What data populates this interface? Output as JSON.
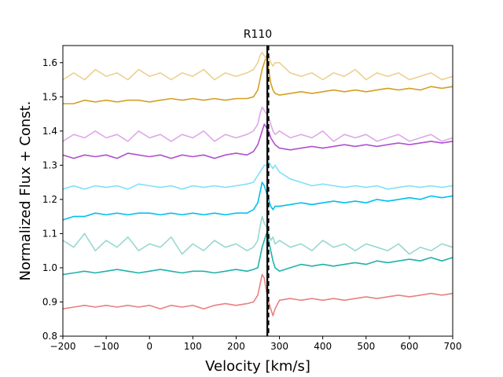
{
  "chart_data": {
    "type": "line",
    "title": "R110",
    "xlabel": "Velocity [km/s]",
    "ylabel": "Normalized Flux + Const.",
    "xlim": [
      -200,
      700
    ],
    "ylim": [
      0.8,
      1.65
    ],
    "xticks": [
      "−200",
      "−100",
      "0",
      "100",
      "200",
      "300",
      "400",
      "500",
      "600",
      "700"
    ],
    "xtick_values": [
      -200,
      -100,
      0,
      100,
      200,
      300,
      400,
      500,
      600,
      700
    ],
    "yticks": [
      "0.8",
      "0.9",
      "1.0",
      "1.1",
      "1.2",
      "1.3",
      "1.4",
      "1.5",
      "1.6"
    ],
    "ytick_values": [
      0.8,
      0.9,
      1.0,
      1.1,
      1.2,
      1.3,
      1.4,
      1.5,
      1.6
    ],
    "vlines": [
      {
        "name": "systemic-velocity",
        "x": 272,
        "style": "solid",
        "color": "#000000"
      },
      {
        "name": "reference-velocity",
        "x": 275,
        "style": "dashed",
        "color": "#000000"
      }
    ],
    "series": [
      {
        "name": "spectrum-1",
        "color": "#e88080",
        "x": [
          -200,
          -175,
          -150,
          -125,
          -100,
          -75,
          -50,
          -25,
          0,
          25,
          50,
          75,
          100,
          125,
          150,
          175,
          200,
          225,
          240,
          250,
          255,
          260,
          265,
          270,
          275,
          280,
          285,
          290,
          300,
          325,
          350,
          375,
          400,
          425,
          450,
          475,
          500,
          525,
          550,
          575,
          600,
          625,
          650,
          675,
          700
        ],
        "values": [
          0.88,
          0.885,
          0.89,
          0.885,
          0.89,
          0.885,
          0.89,
          0.885,
          0.89,
          0.88,
          0.89,
          0.885,
          0.89,
          0.88,
          0.89,
          0.895,
          0.89,
          0.895,
          0.9,
          0.92,
          0.95,
          0.98,
          0.97,
          0.93,
          0.9,
          0.88,
          0.86,
          0.88,
          0.905,
          0.91,
          0.905,
          0.91,
          0.905,
          0.91,
          0.905,
          0.91,
          0.915,
          0.91,
          0.915,
          0.92,
          0.915,
          0.92,
          0.925,
          0.92,
          0.925
        ]
      },
      {
        "name": "spectrum-2",
        "color": "#20b2aa",
        "x": [
          -200,
          -175,
          -150,
          -125,
          -100,
          -75,
          -50,
          -25,
          0,
          25,
          50,
          75,
          100,
          125,
          150,
          175,
          200,
          225,
          240,
          250,
          255,
          260,
          265,
          270,
          275,
          280,
          285,
          290,
          300,
          325,
          350,
          375,
          400,
          425,
          450,
          475,
          500,
          525,
          550,
          575,
          600,
          625,
          650,
          675,
          700
        ],
        "values": [
          0.98,
          0.985,
          0.99,
          0.985,
          0.99,
          0.995,
          0.99,
          0.985,
          0.99,
          0.995,
          0.99,
          0.985,
          0.99,
          0.99,
          0.985,
          0.99,
          0.995,
          0.99,
          0.995,
          1.0,
          1.03,
          1.06,
          1.08,
          1.1,
          1.08,
          1.05,
          1.02,
          1.0,
          0.99,
          1.0,
          1.01,
          1.005,
          1.01,
          1.005,
          1.01,
          1.015,
          1.01,
          1.02,
          1.015,
          1.02,
          1.025,
          1.02,
          1.03,
          1.02,
          1.03
        ]
      },
      {
        "name": "spectrum-3",
        "color": "#98d8d0",
        "x": [
          -200,
          -175,
          -150,
          -125,
          -100,
          -75,
          -50,
          -25,
          0,
          25,
          50,
          75,
          100,
          125,
          150,
          175,
          200,
          225,
          240,
          250,
          255,
          260,
          265,
          270,
          275,
          280,
          285,
          290,
          300,
          325,
          350,
          375,
          400,
          425,
          450,
          475,
          500,
          525,
          550,
          575,
          600,
          625,
          650,
          675,
          700
        ],
        "values": [
          1.08,
          1.06,
          1.1,
          1.05,
          1.08,
          1.06,
          1.09,
          1.05,
          1.07,
          1.06,
          1.09,
          1.04,
          1.07,
          1.05,
          1.08,
          1.06,
          1.07,
          1.05,
          1.06,
          1.08,
          1.12,
          1.15,
          1.13,
          1.12,
          1.1,
          1.08,
          1.09,
          1.07,
          1.08,
          1.06,
          1.07,
          1.05,
          1.08,
          1.06,
          1.07,
          1.05,
          1.07,
          1.06,
          1.05,
          1.07,
          1.04,
          1.06,
          1.05,
          1.07,
          1.06
        ]
      },
      {
        "name": "spectrum-4",
        "color": "#00bfee",
        "x": [
          -200,
          -175,
          -150,
          -125,
          -100,
          -75,
          -50,
          -25,
          0,
          25,
          50,
          75,
          100,
          125,
          150,
          175,
          200,
          225,
          240,
          250,
          255,
          260,
          265,
          270,
          275,
          280,
          285,
          290,
          300,
          325,
          350,
          375,
          400,
          425,
          450,
          475,
          500,
          525,
          550,
          575,
          600,
          625,
          650,
          675,
          700
        ],
        "values": [
          1.14,
          1.15,
          1.15,
          1.16,
          1.155,
          1.16,
          1.155,
          1.16,
          1.16,
          1.155,
          1.16,
          1.155,
          1.16,
          1.155,
          1.16,
          1.155,
          1.16,
          1.16,
          1.17,
          1.19,
          1.22,
          1.25,
          1.24,
          1.22,
          1.2,
          1.18,
          1.17,
          1.18,
          1.18,
          1.185,
          1.19,
          1.185,
          1.19,
          1.195,
          1.19,
          1.195,
          1.19,
          1.2,
          1.195,
          1.2,
          1.205,
          1.2,
          1.21,
          1.205,
          1.21
        ]
      },
      {
        "name": "spectrum-5",
        "color": "#80e0f8",
        "x": [
          -200,
          -175,
          -150,
          -125,
          -100,
          -75,
          -50,
          -25,
          0,
          25,
          50,
          75,
          100,
          125,
          150,
          175,
          200,
          225,
          240,
          250,
          255,
          260,
          265,
          270,
          275,
          280,
          285,
          290,
          300,
          325,
          350,
          375,
          400,
          425,
          450,
          475,
          500,
          525,
          550,
          575,
          600,
          625,
          650,
          675,
          700
        ],
        "values": [
          1.23,
          1.24,
          1.23,
          1.24,
          1.235,
          1.24,
          1.23,
          1.245,
          1.24,
          1.235,
          1.24,
          1.23,
          1.24,
          1.235,
          1.24,
          1.235,
          1.24,
          1.245,
          1.25,
          1.27,
          1.28,
          1.29,
          1.3,
          1.3,
          1.31,
          1.3,
          1.29,
          1.3,
          1.28,
          1.26,
          1.25,
          1.24,
          1.245,
          1.24,
          1.235,
          1.24,
          1.235,
          1.24,
          1.23,
          1.235,
          1.24,
          1.235,
          1.24,
          1.235,
          1.24
        ]
      },
      {
        "name": "spectrum-6",
        "color": "#b050d0",
        "x": [
          -200,
          -175,
          -150,
          -125,
          -100,
          -75,
          -50,
          -25,
          0,
          25,
          50,
          75,
          100,
          125,
          150,
          175,
          200,
          225,
          240,
          250,
          255,
          260,
          265,
          270,
          275,
          280,
          285,
          290,
          300,
          325,
          350,
          375,
          400,
          425,
          450,
          475,
          500,
          525,
          550,
          575,
          600,
          625,
          650,
          675,
          700
        ],
        "values": [
          1.33,
          1.32,
          1.33,
          1.325,
          1.33,
          1.32,
          1.335,
          1.33,
          1.325,
          1.33,
          1.32,
          1.33,
          1.325,
          1.33,
          1.32,
          1.33,
          1.335,
          1.33,
          1.34,
          1.36,
          1.38,
          1.4,
          1.42,
          1.41,
          1.4,
          1.38,
          1.37,
          1.36,
          1.35,
          1.345,
          1.35,
          1.355,
          1.35,
          1.355,
          1.36,
          1.355,
          1.36,
          1.355,
          1.36,
          1.365,
          1.36,
          1.365,
          1.37,
          1.365,
          1.37
        ]
      },
      {
        "name": "spectrum-7",
        "color": "#dda8e8",
        "x": [
          -200,
          -175,
          -150,
          -125,
          -100,
          -75,
          -50,
          -25,
          0,
          25,
          50,
          75,
          100,
          125,
          150,
          175,
          200,
          225,
          240,
          250,
          255,
          260,
          265,
          270,
          275,
          280,
          285,
          290,
          300,
          325,
          350,
          375,
          400,
          425,
          450,
          475,
          500,
          525,
          550,
          575,
          600,
          625,
          650,
          675,
          700
        ],
        "values": [
          1.37,
          1.39,
          1.38,
          1.4,
          1.38,
          1.39,
          1.37,
          1.4,
          1.38,
          1.39,
          1.37,
          1.39,
          1.38,
          1.4,
          1.37,
          1.39,
          1.38,
          1.39,
          1.4,
          1.42,
          1.45,
          1.47,
          1.46,
          1.45,
          1.44,
          1.42,
          1.4,
          1.39,
          1.4,
          1.38,
          1.39,
          1.38,
          1.4,
          1.37,
          1.39,
          1.38,
          1.39,
          1.37,
          1.38,
          1.39,
          1.37,
          1.38,
          1.39,
          1.37,
          1.38
        ]
      },
      {
        "name": "spectrum-8",
        "color": "#d4a024",
        "x": [
          -200,
          -175,
          -150,
          -125,
          -100,
          -75,
          -50,
          -25,
          0,
          25,
          50,
          75,
          100,
          125,
          150,
          175,
          200,
          225,
          240,
          250,
          255,
          260,
          265,
          270,
          275,
          280,
          285,
          290,
          300,
          325,
          350,
          375,
          400,
          425,
          450,
          475,
          500,
          525,
          550,
          575,
          600,
          625,
          650,
          675,
          700
        ],
        "values": [
          1.48,
          1.48,
          1.49,
          1.485,
          1.49,
          1.485,
          1.49,
          1.49,
          1.485,
          1.49,
          1.495,
          1.49,
          1.495,
          1.49,
          1.495,
          1.49,
          1.495,
          1.495,
          1.5,
          1.52,
          1.55,
          1.58,
          1.6,
          1.62,
          1.58,
          1.54,
          1.52,
          1.51,
          1.505,
          1.51,
          1.515,
          1.51,
          1.515,
          1.52,
          1.515,
          1.52,
          1.515,
          1.52,
          1.525,
          1.52,
          1.525,
          1.52,
          1.53,
          1.525,
          1.53
        ]
      },
      {
        "name": "spectrum-9",
        "color": "#ecd090",
        "x": [
          -200,
          -175,
          -150,
          -125,
          -100,
          -75,
          -50,
          -25,
          0,
          25,
          50,
          75,
          100,
          125,
          150,
          175,
          200,
          225,
          240,
          250,
          255,
          260,
          265,
          270,
          275,
          280,
          285,
          290,
          300,
          325,
          350,
          375,
          400,
          425,
          450,
          475,
          500,
          525,
          550,
          575,
          600,
          625,
          650,
          675,
          700
        ],
        "values": [
          1.55,
          1.57,
          1.55,
          1.58,
          1.56,
          1.57,
          1.55,
          1.58,
          1.56,
          1.57,
          1.55,
          1.57,
          1.56,
          1.58,
          1.55,
          1.57,
          1.56,
          1.57,
          1.58,
          1.6,
          1.62,
          1.63,
          1.62,
          1.61,
          1.62,
          1.6,
          1.59,
          1.6,
          1.6,
          1.57,
          1.56,
          1.57,
          1.55,
          1.57,
          1.56,
          1.58,
          1.55,
          1.57,
          1.56,
          1.57,
          1.55,
          1.56,
          1.57,
          1.55,
          1.56
        ]
      }
    ]
  }
}
